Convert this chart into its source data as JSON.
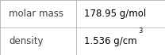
{
  "rows": [
    {
      "label": "molar mass",
      "value": "178.95 g/mol",
      "superscript": null
    },
    {
      "label": "density",
      "value": "1.536 g/cm",
      "superscript": "3"
    }
  ],
  "background_color": "#ffffff",
  "border_color": "#bbbbbb",
  "label_color": "#404040",
  "value_color": "#000000",
  "font_size": 8.5,
  "sup_font_size": 6.0,
  "col_split": 0.46,
  "figwidth": 2.08,
  "figheight": 0.7
}
